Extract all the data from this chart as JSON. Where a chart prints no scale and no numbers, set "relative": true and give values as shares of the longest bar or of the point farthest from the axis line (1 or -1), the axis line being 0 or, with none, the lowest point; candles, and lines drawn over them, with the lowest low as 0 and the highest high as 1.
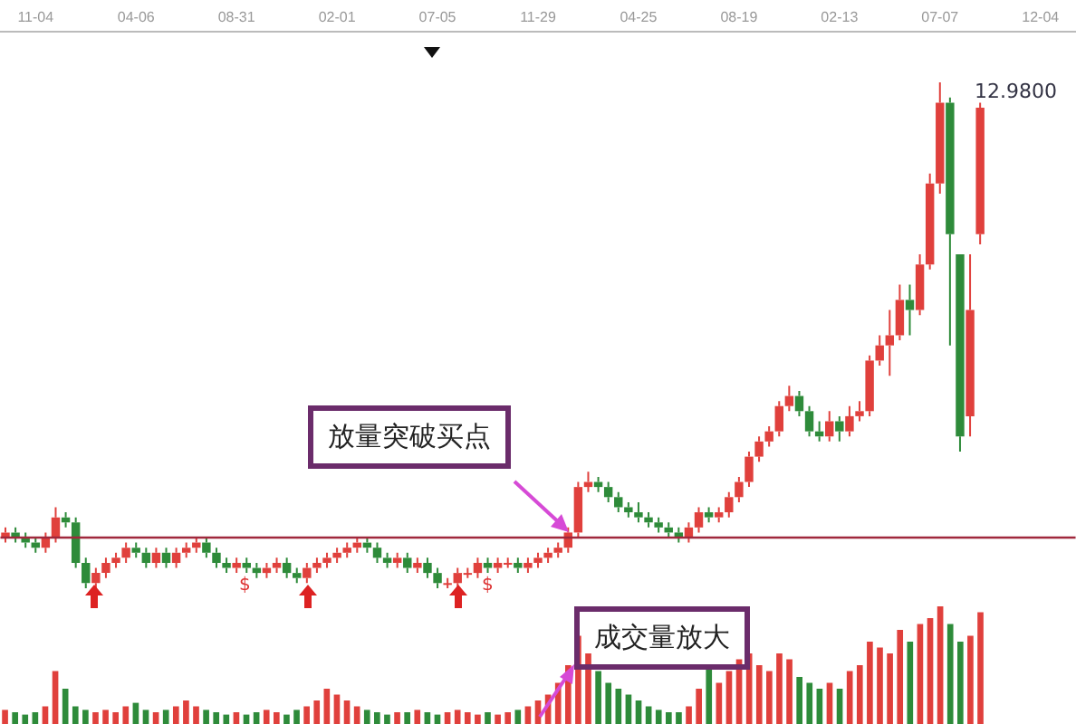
{
  "chart_data": [
    {
      "type": "candlestick",
      "relative": true,
      "legend": false,
      "categories": [
        null,
        null,
        null,
        "11-04",
        null,
        null,
        null,
        null,
        null,
        null,
        null,
        null,
        null,
        "04-06",
        null,
        null,
        null,
        null,
        null,
        null,
        null,
        null,
        null,
        "08-31",
        null,
        null,
        null,
        null,
        null,
        null,
        null,
        null,
        null,
        "02-01",
        null,
        null,
        null,
        null,
        null,
        null,
        null,
        null,
        null,
        "07-05",
        null,
        null,
        null,
        null,
        null,
        null,
        null,
        null,
        null,
        "11-29",
        null,
        null,
        null,
        null,
        null,
        null,
        null,
        null,
        null,
        "04-25",
        null,
        null,
        null,
        null,
        null,
        null,
        null,
        null,
        null,
        "08-19",
        null,
        null,
        null,
        null,
        null,
        null,
        null,
        null,
        null,
        "02-13",
        null,
        null,
        null,
        null,
        null,
        null,
        null,
        null,
        null,
        "07-07",
        null,
        null,
        null,
        null,
        null,
        null,
        null,
        null,
        null,
        "12-04",
        null,
        null,
        null
      ],
      "ohlc": [
        [
          0.1,
          0.12,
          0.09,
          0.11
        ],
        [
          0.11,
          0.12,
          0.09,
          0.1
        ],
        [
          0.1,
          0.11,
          0.08,
          0.09
        ],
        [
          0.09,
          0.1,
          0.07,
          0.08
        ],
        [
          0.08,
          0.11,
          0.07,
          0.1
        ],
        [
          0.1,
          0.16,
          0.09,
          0.14
        ],
        [
          0.14,
          0.15,
          0.12,
          0.13
        ],
        [
          0.13,
          0.14,
          0.04,
          0.05
        ],
        [
          0.05,
          0.06,
          0,
          0.01
        ],
        [
          0.01,
          0.04,
          0,
          0.03
        ],
        [
          0.03,
          0.06,
          0.02,
          0.05
        ],
        [
          0.05,
          0.07,
          0.04,
          0.06
        ],
        [
          0.06,
          0.09,
          0.05,
          0.08
        ],
        [
          0.08,
          0.09,
          0.06,
          0.07
        ],
        [
          0.07,
          0.08,
          0.04,
          0.05
        ],
        [
          0.05,
          0.08,
          0.04,
          0.07
        ],
        [
          0.07,
          0.08,
          0.04,
          0.05
        ],
        [
          0.05,
          0.08,
          0.04,
          0.07
        ],
        [
          0.07,
          0.09,
          0.06,
          0.08
        ],
        [
          0.08,
          0.1,
          0.07,
          0.09
        ],
        [
          0.09,
          0.1,
          0.06,
          0.07
        ],
        [
          0.07,
          0.08,
          0.04,
          0.05
        ],
        [
          0.05,
          0.06,
          0.03,
          0.04
        ],
        [
          0.04,
          0.06,
          0.03,
          0.05
        ],
        [
          0.05,
          0.06,
          0.03,
          0.04
        ],
        [
          0.04,
          0.05,
          0.02,
          0.03
        ],
        [
          0.03,
          0.05,
          0.02,
          0.04
        ],
        [
          0.04,
          0.06,
          0.03,
          0.05
        ],
        [
          0.05,
          0.06,
          0.02,
          0.03
        ],
        [
          0.03,
          0.04,
          0.01,
          0.02
        ],
        [
          0.02,
          0.05,
          0.01,
          0.04
        ],
        [
          0.04,
          0.06,
          0.03,
          0.05
        ],
        [
          0.05,
          0.07,
          0.04,
          0.06
        ],
        [
          0.06,
          0.08,
          0.05,
          0.07
        ],
        [
          0.07,
          0.09,
          0.06,
          0.08
        ],
        [
          0.08,
          0.1,
          0.07,
          0.09
        ],
        [
          0.09,
          0.1,
          0.07,
          0.08
        ],
        [
          0.08,
          0.09,
          0.05,
          0.06
        ],
        [
          0.06,
          0.07,
          0.04,
          0.05
        ],
        [
          0.05,
          0.07,
          0.04,
          0.06
        ],
        [
          0.06,
          0.07,
          0.03,
          0.04
        ],
        [
          0.04,
          0.06,
          0.03,
          0.05
        ],
        [
          0.05,
          0.06,
          0.02,
          0.03
        ],
        [
          0.03,
          0.04,
          0,
          0.01
        ],
        [
          0.01,
          0.02,
          0,
          0.01
        ],
        [
          0.01,
          0.04,
          0,
          0.03
        ],
        [
          0.03,
          0.04,
          0.02,
          0.03
        ],
        [
          0.03,
          0.06,
          0.02,
          0.05
        ],
        [
          0.05,
          0.06,
          0.03,
          0.04
        ],
        [
          0.04,
          0.06,
          0.03,
          0.05
        ],
        [
          0.05,
          0.06,
          0.04,
          0.05
        ],
        [
          0.05,
          0.06,
          0.03,
          0.04
        ],
        [
          0.04,
          0.06,
          0.03,
          0.05
        ],
        [
          0.05,
          0.07,
          0.04,
          0.06
        ],
        [
          0.06,
          0.08,
          0.05,
          0.07
        ],
        [
          0.07,
          0.09,
          0.06,
          0.08
        ],
        [
          0.08,
          0.12,
          0.07,
          0.11
        ],
        [
          0.11,
          0.21,
          0.1,
          0.2
        ],
        [
          0.2,
          0.23,
          0.19,
          0.21
        ],
        [
          0.21,
          0.22,
          0.19,
          0.2
        ],
        [
          0.2,
          0.21,
          0.17,
          0.18
        ],
        [
          0.18,
          0.19,
          0.15,
          0.16
        ],
        [
          0.16,
          0.17,
          0.14,
          0.15
        ],
        [
          0.15,
          0.17,
          0.13,
          0.14
        ],
        [
          0.14,
          0.15,
          0.12,
          0.13
        ],
        [
          0.13,
          0.14,
          0.11,
          0.12
        ],
        [
          0.12,
          0.13,
          0.1,
          0.11
        ],
        [
          0.11,
          0.12,
          0.09,
          0.1
        ],
        [
          0.1,
          0.13,
          0.09,
          0.12
        ],
        [
          0.12,
          0.16,
          0.11,
          0.15
        ],
        [
          0.15,
          0.16,
          0.13,
          0.14
        ],
        [
          0.14,
          0.16,
          0.13,
          0.15
        ],
        [
          0.15,
          0.19,
          0.14,
          0.18
        ],
        [
          0.18,
          0.22,
          0.17,
          0.21
        ],
        [
          0.21,
          0.27,
          0.2,
          0.26
        ],
        [
          0.26,
          0.3,
          0.25,
          0.29
        ],
        [
          0.29,
          0.32,
          0.28,
          0.31
        ],
        [
          0.31,
          0.37,
          0.3,
          0.36
        ],
        [
          0.36,
          0.4,
          0.35,
          0.38
        ],
        [
          0.38,
          0.39,
          0.34,
          0.35
        ],
        [
          0.35,
          0.36,
          0.3,
          0.31
        ],
        [
          0.31,
          0.33,
          0.29,
          0.3
        ],
        [
          0.3,
          0.35,
          0.29,
          0.33
        ],
        [
          0.33,
          0.34,
          0.29,
          0.31
        ],
        [
          0.31,
          0.36,
          0.3,
          0.34
        ],
        [
          0.34,
          0.37,
          0.33,
          0.35
        ],
        [
          0.35,
          0.46,
          0.34,
          0.45
        ],
        [
          0.45,
          0.5,
          0.44,
          0.48
        ],
        [
          0.48,
          0.55,
          0.42,
          0.5
        ],
        [
          0.5,
          0.6,
          0.49,
          0.57
        ],
        [
          0.57,
          0.6,
          0.5,
          0.55
        ],
        [
          0.55,
          0.66,
          0.54,
          0.64
        ],
        [
          0.64,
          0.82,
          0.63,
          0.8
        ],
        [
          0.8,
          1,
          0.78,
          0.96
        ],
        [
          0.96,
          0.97,
          0.48,
          0.7
        ],
        [
          0.66,
          0.66,
          0.27,
          0.3
        ],
        [
          0.34,
          0.66,
          0.3,
          0.55
        ],
        [
          0.7,
          0.96,
          0.68,
          0.95
        ],
        null,
        null,
        null,
        null,
        null,
        null,
        null,
        null,
        null
      ],
      "colors": [
        "#e0403c",
        "#2e8b3a",
        "#2e8b3a",
        "#2e8b3a",
        "#e0403c",
        "#e0403c",
        "#2e8b3a",
        "#2e8b3a",
        "#2e8b3a",
        "#e0403c",
        "#e0403c",
        "#e0403c",
        "#e0403c",
        "#2e8b3a",
        "#2e8b3a",
        "#e0403c",
        "#2e8b3a",
        "#e0403c",
        "#e0403c",
        "#e0403c",
        "#2e8b3a",
        "#2e8b3a",
        "#2e8b3a",
        "#e0403c",
        "#2e8b3a",
        "#2e8b3a",
        "#e0403c",
        "#e0403c",
        "#2e8b3a",
        "#2e8b3a",
        "#e0403c",
        "#e0403c",
        "#e0403c",
        "#e0403c",
        "#e0403c",
        "#e0403c",
        "#2e8b3a",
        "#2e8b3a",
        "#2e8b3a",
        "#e0403c",
        "#2e8b3a",
        "#e0403c",
        "#2e8b3a",
        "#2e8b3a",
        "#e0403c",
        "#e0403c",
        "#e0403c",
        "#e0403c",
        "#2e8b3a",
        "#e0403c",
        "#e0403c",
        "#2e8b3a",
        "#e0403c",
        "#e0403c",
        "#e0403c",
        "#e0403c",
        "#e0403c",
        "#e0403c",
        "#e0403c",
        "#2e8b3a",
        "#2e8b3a",
        "#2e8b3a",
        "#2e8b3a",
        "#2e8b3a",
        "#2e8b3a",
        "#2e8b3a",
        "#2e8b3a",
        "#2e8b3a",
        "#e0403c",
        "#e0403c",
        "#2e8b3a",
        "#e0403c",
        "#e0403c",
        "#e0403c",
        "#e0403c",
        "#e0403c",
        "#e0403c",
        "#e0403c",
        "#e0403c",
        "#2e8b3a",
        "#2e8b3a",
        "#2e8b3a",
        "#e0403c",
        "#2e8b3a",
        "#e0403c",
        "#e0403c",
        "#e0403c",
        "#e0403c",
        "#e0403c",
        "#e0403c",
        "#2e8b3a",
        "#e0403c",
        "#e0403c",
        "#e0403c",
        "#2e8b3a",
        "#2e8b3a",
        "#e0403c",
        "#e0403c",
        "#e0403c",
        "#e0403c",
        "#e0403c",
        "#e0403c",
        "#e0403c",
        "#e0403c",
        "#e0403c",
        "#e0403c",
        "#e0403c"
      ],
      "ref_lines": [
        {
          "axis": "y",
          "value": 0.1,
          "color": "#a0283c"
        }
      ],
      "annotations": [
        "放量突破买点",
        "12.9800",
        "$",
        "$"
      ]
    },
    {
      "type": "bar",
      "relative": true,
      "legend": false,
      "categories": [
        null,
        null,
        null,
        null,
        null,
        null,
        null,
        null,
        null,
        null,
        null,
        null,
        null,
        null,
        null,
        null,
        null,
        null,
        null,
        null,
        null,
        null,
        null,
        null,
        null,
        null,
        null,
        null,
        null,
        null,
        null,
        null,
        null,
        null,
        null,
        null,
        null,
        null,
        null,
        null,
        null,
        null,
        null,
        null,
        null,
        null,
        null,
        null,
        null,
        null,
        null,
        null,
        null,
        null,
        null,
        null,
        null,
        null,
        null,
        null,
        null,
        null,
        null,
        null,
        null,
        null,
        null,
        null,
        null,
        null,
        null,
        null,
        null,
        null,
        null,
        null,
        null,
        null,
        null,
        null,
        null,
        null,
        null,
        null,
        null,
        null,
        null,
        null,
        null,
        null,
        null,
        null,
        null,
        null,
        null,
        null,
        null,
        null,
        null,
        null,
        null,
        null,
        null,
        null,
        null,
        null,
        null
      ],
      "values": [
        0.12,
        0.1,
        0.08,
        0.1,
        0.15,
        0.45,
        0.3,
        0.15,
        0.12,
        0.1,
        0.12,
        0.1,
        0.15,
        0.18,
        0.12,
        0.1,
        0.12,
        0.15,
        0.2,
        0.15,
        0.12,
        0.1,
        0.08,
        0.1,
        0.08,
        0.1,
        0.12,
        0.1,
        0.08,
        0.12,
        0.15,
        0.2,
        0.3,
        0.25,
        0.2,
        0.15,
        0.12,
        0.1,
        0.08,
        0.1,
        0.1,
        0.12,
        0.1,
        0.08,
        0.1,
        0.12,
        0.1,
        0.08,
        0.1,
        0.08,
        0.1,
        0.12,
        0.15,
        0.2,
        0.25,
        0.35,
        0.5,
        0.75,
        0.6,
        0.45,
        0.35,
        0.3,
        0.25,
        0.2,
        0.15,
        0.12,
        0.1,
        0.1,
        0.15,
        0.3,
        0.5,
        0.35,
        0.45,
        0.55,
        0.6,
        0.5,
        0.45,
        0.6,
        0.55,
        0.4,
        0.35,
        0.3,
        0.35,
        0.3,
        0.45,
        0.5,
        0.7,
        0.65,
        0.6,
        0.8,
        0.7,
        0.85,
        0.9,
        1,
        0.85,
        0.7,
        0.75,
        0.95,
        null,
        null,
        null,
        null,
        null,
        null,
        null,
        null,
        null
      ],
      "colors": [
        "#e0403c",
        "#2e8b3a",
        "#2e8b3a",
        "#2e8b3a",
        "#e0403c",
        "#e0403c",
        "#2e8b3a",
        "#2e8b3a",
        "#2e8b3a",
        "#e0403c",
        "#e0403c",
        "#e0403c",
        "#e0403c",
        "#2e8b3a",
        "#2e8b3a",
        "#e0403c",
        "#2e8b3a",
        "#e0403c",
        "#e0403c",
        "#e0403c",
        "#2e8b3a",
        "#2e8b3a",
        "#2e8b3a",
        "#e0403c",
        "#2e8b3a",
        "#2e8b3a",
        "#e0403c",
        "#e0403c",
        "#2e8b3a",
        "#2e8b3a",
        "#e0403c",
        "#e0403c",
        "#e0403c",
        "#e0403c",
        "#e0403c",
        "#e0403c",
        "#2e8b3a",
        "#2e8b3a",
        "#2e8b3a",
        "#e0403c",
        "#2e8b3a",
        "#e0403c",
        "#2e8b3a",
        "#2e8b3a",
        "#e0403c",
        "#e0403c",
        "#e0403c",
        "#e0403c",
        "#2e8b3a",
        "#e0403c",
        "#e0403c",
        "#2e8b3a",
        "#e0403c",
        "#e0403c",
        "#e0403c",
        "#e0403c",
        "#e0403c",
        "#e0403c",
        "#e0403c",
        "#2e8b3a",
        "#2e8b3a",
        "#2e8b3a",
        "#2e8b3a",
        "#2e8b3a",
        "#2e8b3a",
        "#2e8b3a",
        "#2e8b3a",
        "#2e8b3a",
        "#e0403c",
        "#e0403c",
        "#2e8b3a",
        "#e0403c",
        "#e0403c",
        "#e0403c",
        "#e0403c",
        "#e0403c",
        "#e0403c",
        "#e0403c",
        "#e0403c",
        "#2e8b3a",
        "#2e8b3a",
        "#2e8b3a",
        "#e0403c",
        "#2e8b3a",
        "#e0403c",
        "#e0403c",
        "#e0403c",
        "#e0403c",
        "#e0403c",
        "#e0403c",
        "#2e8b3a",
        "#e0403c",
        "#e0403c",
        "#e0403c",
        "#2e8b3a",
        "#2e8b3a",
        "#e0403c",
        "#e0403c",
        "#e0403c",
        "#e0403c",
        "#e0403c",
        "#e0403c",
        "#e0403c",
        "#e0403c",
        "#e0403c",
        "#e0403c",
        "#e0403c"
      ],
      "annotations": [
        "成交量放大"
      ]
    }
  ]
}
